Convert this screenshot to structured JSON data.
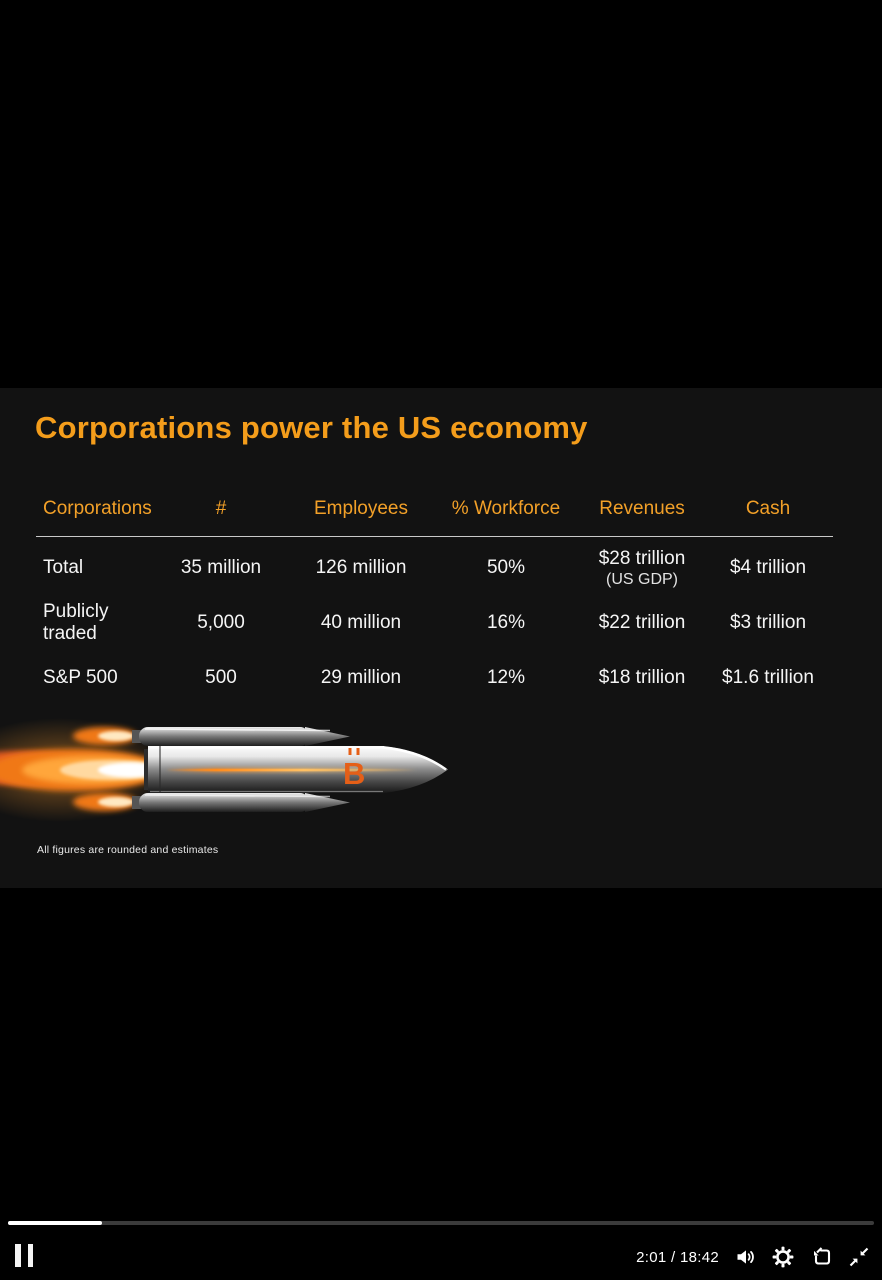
{
  "slide": {
    "title": "Corporations power the US economy",
    "table": {
      "headers": [
        "Corporations",
        "#",
        "Employees",
        "% Workforce",
        "Revenues",
        "Cash"
      ],
      "rows": [
        {
          "cells": [
            "Total",
            "35 million",
            "126 million",
            "50%",
            "$28 trillion",
            "$4 trillion"
          ],
          "revenue_note": "(US GDP)"
        },
        {
          "cells": [
            "Publicly traded",
            "5,000",
            "40 million",
            "16%",
            "$22 trillion",
            "$3 trillion"
          ],
          "revenue_note": ""
        },
        {
          "cells": [
            "S&P 500",
            "500",
            "29 million",
            "12%",
            "$18 trillion",
            "$1.6 trillion"
          ],
          "revenue_note": ""
        }
      ]
    },
    "rocket_emblem": "B",
    "footnote": "All figures are rounded and estimates",
    "colors": {
      "accent_orange": "#F49D1B",
      "emblem_orange": "#E55F17",
      "slide_bg": "#121212"
    }
  },
  "player": {
    "time_display": "2:01 / 18:42",
    "current_time": "2:01",
    "duration": "18:42",
    "progress_percent": 10.8,
    "state": "playing"
  }
}
